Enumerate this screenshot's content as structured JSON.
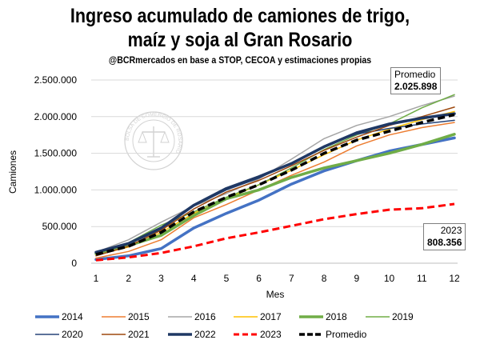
{
  "title_line1": "Ingreso acumulado de camiones de trigo,",
  "title_line2": "maíz y soja al Gran Rosario",
  "subtitle": "@BCRmercados  en base a STOP,  CECOA y estimaciones propias",
  "watermark": {
    "text": "BOLSA DE COMERCIO DE ROSARIO"
  },
  "annotations": [
    {
      "label": "Promedio",
      "value": "2.025.898"
    },
    {
      "label": "2023",
      "value": "808.356"
    }
  ],
  "chart_data": {
    "type": "line",
    "xlabel": "Mes",
    "ylabel": "Camiones",
    "x": [
      1,
      2,
      3,
      4,
      5,
      6,
      7,
      8,
      9,
      10,
      11,
      12
    ],
    "x_ticks": [
      "1",
      "2",
      "3",
      "4",
      "5",
      "6",
      "7",
      "8",
      "9",
      "10",
      "11",
      "12"
    ],
    "ylim": [
      0,
      2500000
    ],
    "y_ticks": [
      0,
      500000,
      1000000,
      1500000,
      2000000,
      2500000
    ],
    "y_tick_labels": [
      "0",
      "500.000",
      "1.000.000",
      "1.500.000",
      "2.000.000",
      "2.500.000"
    ],
    "grid": "horizontal",
    "legend_position": "bottom",
    "series": [
      {
        "name": "2014",
        "color": "#4472c4",
        "width": 3.5,
        "dash": "",
        "values": [
          50000,
          100000,
          200000,
          480000,
          680000,
          860000,
          1080000,
          1260000,
          1400000,
          1530000,
          1620000,
          1710000
        ]
      },
      {
        "name": "2015",
        "color": "#ed7d31",
        "width": 1.5,
        "dash": "",
        "values": [
          70000,
          160000,
          320000,
          620000,
          800000,
          1000000,
          1200000,
          1380000,
          1600000,
          1750000,
          1850000,
          1920000
        ]
      },
      {
        "name": "2016",
        "color": "#a5a5a5",
        "width": 1.5,
        "dash": "",
        "values": [
          150000,
          320000,
          560000,
          780000,
          950000,
          1150000,
          1420000,
          1700000,
          1880000,
          2000000,
          2150000,
          2280000
        ]
      },
      {
        "name": "2017",
        "color": "#ffc000",
        "width": 1.5,
        "dash": "",
        "values": [
          110000,
          220000,
          420000,
          680000,
          880000,
          1070000,
          1270000,
          1480000,
          1680000,
          1830000,
          1960000,
          2070000
        ]
      },
      {
        "name": "2018",
        "color": "#70ad47",
        "width": 3.5,
        "dash": "",
        "values": [
          130000,
          240000,
          380000,
          650000,
          880000,
          1000000,
          1170000,
          1300000,
          1400000,
          1500000,
          1620000,
          1760000
        ]
      },
      {
        "name": "2019",
        "color": "#70ad47",
        "width": 1.5,
        "dash": "",
        "values": [
          120000,
          280000,
          520000,
          700000,
          900000,
          1070000,
          1300000,
          1550000,
          1750000,
          1900000,
          2120000,
          2300000
        ]
      },
      {
        "name": "2020",
        "color": "#264478",
        "width": 1.5,
        "dash": "",
        "values": [
          140000,
          260000,
          460000,
          780000,
          1000000,
          1160000,
          1370000,
          1600000,
          1760000,
          1840000,
          1900000,
          1950000
        ]
      },
      {
        "name": "2021",
        "color": "#9e480e",
        "width": 1.5,
        "dash": "",
        "values": [
          100000,
          230000,
          450000,
          740000,
          970000,
          1130000,
          1330000,
          1540000,
          1720000,
          1880000,
          2000000,
          2130000
        ]
      },
      {
        "name": "2022",
        "color": "#1f3864",
        "width": 3.5,
        "dash": "",
        "values": [
          150000,
          270000,
          480000,
          790000,
          1020000,
          1180000,
          1360000,
          1590000,
          1780000,
          1900000,
          1980000,
          2040000
        ]
      },
      {
        "name": "2023",
        "color": "#ff0000",
        "width": 3,
        "dash": "9,5",
        "values": [
          40000,
          80000,
          140000,
          230000,
          340000,
          420000,
          510000,
          600000,
          670000,
          730000,
          750000,
          808356
        ]
      },
      {
        "name": "Promedio",
        "color": "#000000",
        "width": 3.5,
        "dash": "9,5",
        "values": [
          120000,
          230000,
          420000,
          700000,
          900000,
          1070000,
          1270000,
          1500000,
          1680000,
          1800000,
          1920000,
          2025898
        ]
      }
    ]
  }
}
